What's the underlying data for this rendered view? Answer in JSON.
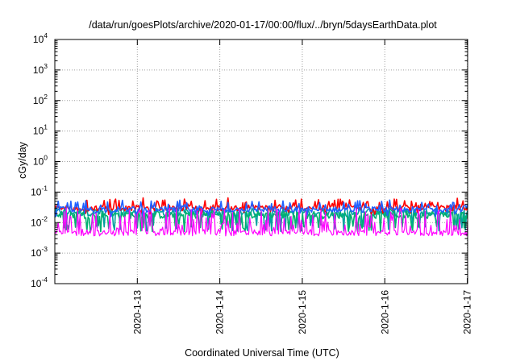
{
  "chart_data": {
    "type": "line",
    "title": "/data/run/goesPlots/archive/2020-01-17/00:00/flux/../bryn/5daysEarthData.plot",
    "xlabel": "Coordinated Universal Time (UTC)",
    "ylabel": "cGy/day",
    "yscale": "log",
    "ylim": [
      0.0001,
      10000
    ],
    "xlim": [
      "2020-01-12 00:00",
      "2020-01-17 00:06"
    ],
    "x_ticks": [
      "2020-1-13",
      "2020-1-14",
      "2020-1-15",
      "2020-1-16",
      "2020-1-17"
    ],
    "y_ticks": [
      {
        "base": "10",
        "exp": "-4",
        "value": 0.0001
      },
      {
        "base": "10",
        "exp": "-3",
        "value": 0.001
      },
      {
        "base": "10",
        "exp": "-2",
        "value": 0.01
      },
      {
        "base": "10",
        "exp": "-1",
        "value": 0.1
      },
      {
        "base": "10",
        "exp": "0",
        "value": 1
      },
      {
        "base": "10",
        "exp": "1",
        "value": 10
      },
      {
        "base": "10",
        "exp": "2",
        "value": 100
      },
      {
        "base": "10",
        "exp": "3",
        "value": 1000
      },
      {
        "base": "10",
        "exp": "4",
        "value": 10000
      }
    ],
    "grid": "dotted, at major ticks",
    "legend": "none",
    "series": [
      {
        "color": "#ff0000",
        "baseline": 0.03,
        "spike_max": 0.065,
        "dip_min": 0.018,
        "noise": "high"
      },
      {
        "color": "#2060ff",
        "baseline": 0.027,
        "spike_max": 0.055,
        "dip_min": 0.015,
        "noise": "high"
      },
      {
        "color": "#00a0a0",
        "baseline": 0.022,
        "spike_max": 0.04,
        "dip_min": 0.005,
        "noise": "medium"
      },
      {
        "color": "#00b070",
        "baseline": 0.018,
        "spike_max": 0.03,
        "dip_min": 0.005,
        "noise": "medium"
      },
      {
        "color": "#ff00ff",
        "baseline": 0.0045,
        "spike_max": 0.03,
        "dip_min": 0.0035,
        "noise": "very high"
      }
    ]
  }
}
